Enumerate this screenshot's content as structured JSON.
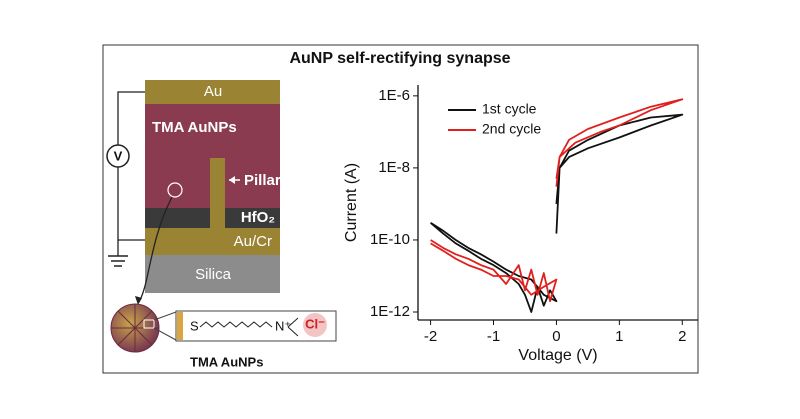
{
  "title": "AuNP self-rectifying synapse",
  "diagram": {
    "layers": [
      "Au",
      "TMA AuNPs",
      "HfO₂",
      "Au/Cr",
      "Silica"
    ],
    "pillar": "Pillar",
    "source": "V",
    "ligand": {
      "s": "S",
      "n": "N⁺",
      "cl": "Cl⁻"
    },
    "particle_label": "TMA AuNPs"
  },
  "chart_data": {
    "type": "line",
    "xlabel": "Voltage (V)",
    "ylabel": "Current (A)",
    "xlim": [
      -2.2,
      2.25
    ],
    "xticks": [
      -2,
      -1,
      0,
      1,
      2
    ],
    "ylim": [
      6e-13,
      2e-06
    ],
    "yticks": [
      {
        "value": 1e-06,
        "label": "1E-6"
      },
      {
        "value": 1e-08,
        "label": "1E-8"
      },
      {
        "value": 1e-10,
        "label": "1E-10"
      },
      {
        "value": 1e-12,
        "label": "1E-12"
      }
    ],
    "log_y": true,
    "legend": "upper-left",
    "series": [
      {
        "name": "1st cycle",
        "color": "#111111",
        "x": [
          -2,
          -1.8,
          -1.6,
          -1.4,
          -1.2,
          -1.0,
          -0.8,
          -0.6,
          -0.5,
          -0.4,
          -0.3,
          -0.2,
          -0.1,
          0,
          -0.2,
          -0.4,
          -0.6,
          -0.8,
          -1,
          -1.2,
          -1.4,
          -1.6,
          -1.8,
          -2,
          null,
          0,
          0.05,
          0.2,
          0.5,
          1,
          1.5,
          2,
          1.5,
          1,
          0.5,
          0.2,
          0.05,
          0
        ],
        "values": [
          3e-10,
          1.5e-10,
          8e-11,
          5e-11,
          3e-11,
          2e-11,
          1.2e-11,
          6e-12,
          3e-12,
          1e-12,
          5e-12,
          1.5e-12,
          4e-12,
          2e-12,
          3e-12,
          8e-12,
          1e-11,
          1.5e-11,
          2.5e-11,
          4e-11,
          6e-11,
          1e-10,
          1.8e-10,
          3e-10,
          null,
          1.5e-10,
          1e-08,
          2e-08,
          3.5e-08,
          7e-08,
          1.5e-07,
          3e-07,
          2.5e-07,
          1.5e-07,
          6e-08,
          3e-08,
          1e-08,
          1e-09
        ]
      },
      {
        "name": "2nd cycle",
        "color": "#e0201c",
        "x": [
          -2,
          -1.8,
          -1.6,
          -1.4,
          -1.2,
          -1.0,
          -0.8,
          -0.6,
          -0.5,
          -0.4,
          -0.3,
          -0.2,
          -0.1,
          0,
          -0.2,
          -0.4,
          -0.6,
          -0.8,
          -1,
          -1.2,
          -1.4,
          -1.6,
          -1.8,
          -2,
          null,
          0,
          0.05,
          0.3,
          0.7,
          1,
          1.5,
          2,
          1.5,
          1,
          0.5,
          0.2,
          0.05,
          0
        ],
        "values": [
          1e-10,
          6e-11,
          4e-11,
          3e-11,
          2e-11,
          1.5e-11,
          6e-12,
          2e-11,
          4e-12,
          1.5e-11,
          3e-12,
          1.2e-11,
          2e-12,
          8e-12,
          5e-12,
          3e-12,
          8e-12,
          1e-11,
          1e-11,
          1.5e-11,
          2e-11,
          3e-11,
          5e-11,
          8e-11,
          null,
          5e-09,
          2e-08,
          5e-08,
          1e-07,
          1.5e-07,
          4e-07,
          8e-07,
          5e-07,
          2.5e-07,
          1.2e-07,
          6e-08,
          2e-08,
          3e-09
        ]
      }
    ]
  }
}
